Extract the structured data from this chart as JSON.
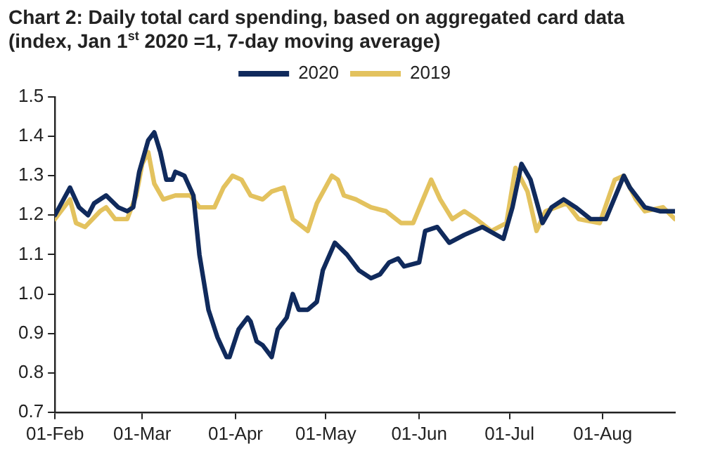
{
  "chart_data": {
    "type": "line",
    "title": "Chart 2: Daily total card spending, based on aggregated card data (index, Jan 1$^{st}$ 2020 =1, 7-day moving average)",
    "series": [
      {
        "name": "2020",
        "color": "#102a5c",
        "x": [
          "--02-01",
          "--02-06",
          "--02-09",
          "--02-12",
          "--02-14",
          "--02-18",
          "--02-22",
          "--02-25",
          "--02-27",
          "--02-29",
          "--03-03",
          "--03-05",
          "--03-07",
          "--03-09",
          "--03-11",
          "--03-12",
          "--03-15",
          "--03-18",
          "--03-20",
          "--03-23",
          "--03-26",
          "--03-29",
          "--03-30",
          "--04-02",
          "--04-05",
          "--04-06",
          "--04-08",
          "--04-10",
          "--04-13",
          "--04-15",
          "--04-18",
          "--04-20",
          "--04-22",
          "--04-25",
          "--04-28",
          "--04-30",
          "--05-04",
          "--05-08",
          "--05-12",
          "--05-16",
          "--05-19",
          "--05-22",
          "--05-25",
          "--05-27",
          "--06-01",
          "--06-03",
          "--06-07",
          "--06-11",
          "--06-16",
          "--06-22",
          "--06-29",
          "--07-02",
          "--07-05",
          "--07-08",
          "--07-12",
          "--07-15",
          "--07-19",
          "--07-23",
          "--07-28",
          "--08-02",
          "--08-08",
          "--08-10",
          "--08-15",
          "--08-20",
          "--08-25"
        ],
        "values": [
          1.2,
          1.27,
          1.22,
          1.2,
          1.23,
          1.25,
          1.22,
          1.21,
          1.22,
          1.31,
          1.39,
          1.41,
          1.36,
          1.29,
          1.29,
          1.31,
          1.3,
          1.25,
          1.1,
          0.96,
          0.89,
          0.84,
          0.84,
          0.91,
          0.94,
          0.93,
          0.88,
          0.87,
          0.84,
          0.91,
          0.94,
          1.0,
          0.96,
          0.96,
          0.98,
          1.06,
          1.13,
          1.1,
          1.06,
          1.04,
          1.05,
          1.08,
          1.09,
          1.07,
          1.08,
          1.16,
          1.17,
          1.13,
          1.15,
          1.17,
          1.14,
          1.22,
          1.33,
          1.29,
          1.18,
          1.22,
          1.24,
          1.22,
          1.19,
          1.19,
          1.3,
          1.27,
          1.22,
          1.21,
          1.21
        ]
      },
      {
        "name": "2019",
        "color": "#e3c25e",
        "x": [
          "--02-01",
          "--02-06",
          "--02-08",
          "--02-11",
          "--02-16",
          "--02-18",
          "--02-21",
          "--02-25",
          "--02-28",
          "--03-01",
          "--03-03",
          "--03-05",
          "--03-08",
          "--03-12",
          "--03-17",
          "--03-20",
          "--03-25",
          "--03-28",
          "--03-31",
          "--04-03",
          "--04-06",
          "--04-10",
          "--04-13",
          "--04-17",
          "--04-20",
          "--04-25",
          "--04-28",
          "--05-03",
          "--05-05",
          "--05-07",
          "--05-11",
          "--05-16",
          "--05-21",
          "--05-26",
          "--05-30",
          "--06-05",
          "--06-08",
          "--06-12",
          "--06-16",
          "--06-20",
          "--06-25",
          "--06-30",
          "--07-03",
          "--07-07",
          "--07-10",
          "--07-13",
          "--07-20",
          "--07-24",
          "--07-31",
          "--08-05",
          "--08-08",
          "--08-12",
          "--08-15",
          "--08-21",
          "--08-25"
        ],
        "values": [
          1.19,
          1.24,
          1.18,
          1.17,
          1.21,
          1.22,
          1.19,
          1.19,
          1.25,
          1.33,
          1.36,
          1.28,
          1.24,
          1.25,
          1.25,
          1.22,
          1.22,
          1.27,
          1.3,
          1.29,
          1.25,
          1.24,
          1.26,
          1.27,
          1.19,
          1.16,
          1.23,
          1.3,
          1.29,
          1.25,
          1.24,
          1.22,
          1.21,
          1.18,
          1.18,
          1.29,
          1.24,
          1.19,
          1.21,
          1.19,
          1.16,
          1.18,
          1.32,
          1.26,
          1.16,
          1.21,
          1.23,
          1.19,
          1.18,
          1.29,
          1.3,
          1.24,
          1.21,
          1.22,
          1.19
        ]
      }
    ],
    "xlim": [
      "--02-01",
      "--08-25"
    ],
    "xticks": [
      {
        "value": "--02-01",
        "label": "01-Feb"
      },
      {
        "value": "--03-01",
        "label": "01-Mar"
      },
      {
        "value": "--04-01",
        "label": "01-Apr"
      },
      {
        "value": "--05-01",
        "label": "01-May"
      },
      {
        "value": "--06-01",
        "label": "01-Jun"
      },
      {
        "value": "--07-01",
        "label": "01-Jul"
      },
      {
        "value": "--08-01",
        "label": "01-Aug"
      }
    ],
    "ylim": [
      0.7,
      1.5
    ],
    "yticks": [
      0.7,
      0.8,
      0.9,
      {
        "value": 1,
        "label": "1.0"
      },
      1.1,
      1.2,
      1.3,
      1.4,
      1.5
    ],
    "grid": false,
    "legend": "top",
    "marker": "none",
    "line_style": "solid"
  }
}
